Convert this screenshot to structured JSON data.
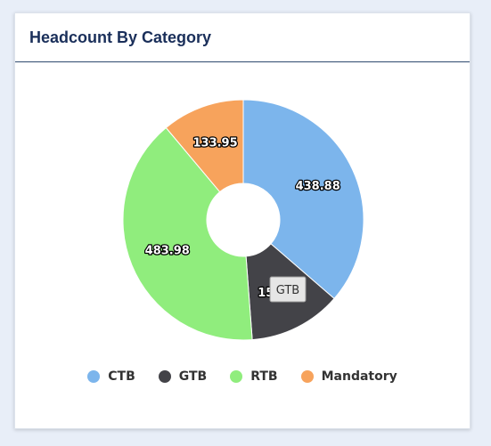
{
  "card": {
    "title": "Headcount By Category"
  },
  "chart_data": {
    "type": "pie",
    "donut": true,
    "categories": [
      "CTB",
      "GTB",
      "RTB",
      "Mandatory"
    ],
    "values": [
      438.88,
      150.25,
      483.98,
      133.95
    ],
    "value_labels": [
      "438.88",
      "150.25",
      "483.98",
      "133.95"
    ],
    "colors": [
      "#7cb5ec",
      "#434348",
      "#90ed7d",
      "#f7a35c"
    ],
    "start_angle_deg": 0,
    "legend": "bottom-center"
  },
  "tooltip": {
    "text": "GTB"
  }
}
